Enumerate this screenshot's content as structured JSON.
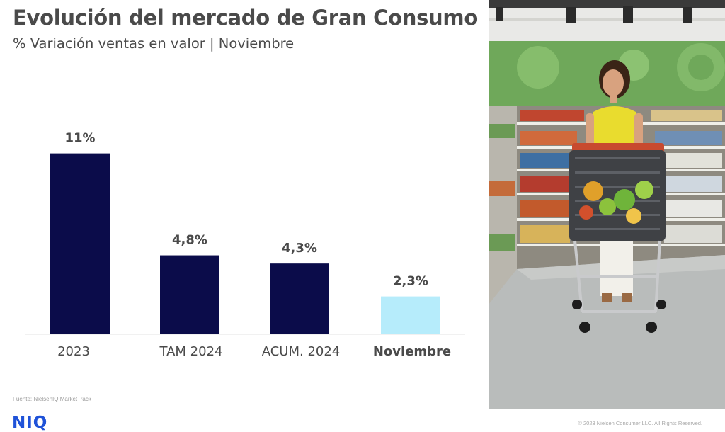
{
  "header": {
    "title": "Evolución del mercado de Gran Consumo",
    "subtitle": "% Variación ventas en valor | Noviembre"
  },
  "chart_data": {
    "type": "bar",
    "categories": [
      "2023",
      "TAM 2024",
      "ACUM. 2024",
      "Noviembre"
    ],
    "values": [
      11,
      4.8,
      4.3,
      2.3
    ],
    "value_labels": [
      "11%",
      "4,8%",
      "4,3%",
      "2,3%"
    ],
    "highlight_index": 3,
    "colors": {
      "bar": "#0b0c4a",
      "highlight": "#b6ecfb"
    },
    "ylim": [
      0,
      11.5
    ],
    "grid": false,
    "legend": "none"
  },
  "footer": {
    "source": "Fuente: NielsenIQ MarketTrack",
    "logo": "NIQ",
    "copyright": "© 2023 Nielsen Consumer LLC. All Rights Reserved."
  },
  "photo": {
    "subject": "shopper-with-cart-in-supermarket"
  }
}
